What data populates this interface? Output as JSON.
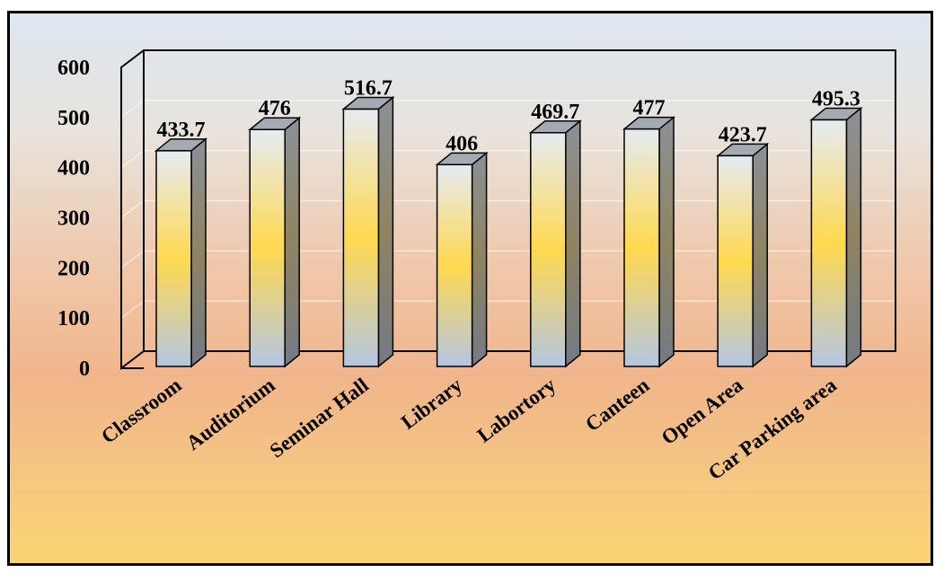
{
  "chart_data": {
    "type": "bar",
    "title": "",
    "xlabel": "",
    "ylabel": "",
    "categories": [
      "Classroom",
      "Auditorium",
      "Seminar Hall",
      "Library",
      "Labortory",
      "Canteen",
      "Open Area",
      "Car Parking area"
    ],
    "values": [
      433.7,
      476,
      516.7,
      406,
      469.7,
      477,
      423.7,
      495.3
    ],
    "value_labels": [
      "433.7",
      "476",
      "516.7",
      "406",
      "469.7",
      "477",
      "423.7",
      "495.3"
    ],
    "ylim": [
      0,
      600
    ],
    "yticks": [
      "0",
      "100",
      "200",
      "300",
      "400",
      "500",
      "600"
    ],
    "grid": true,
    "style": "3d-column",
    "colors": {
      "bar_top": "#e3e8f2",
      "bar_mid": "#ffd94f",
      "bar_bottom": "#b9c9e4",
      "bar_side": "#7b7f86",
      "bar_cap": "#a4a9b1"
    }
  }
}
